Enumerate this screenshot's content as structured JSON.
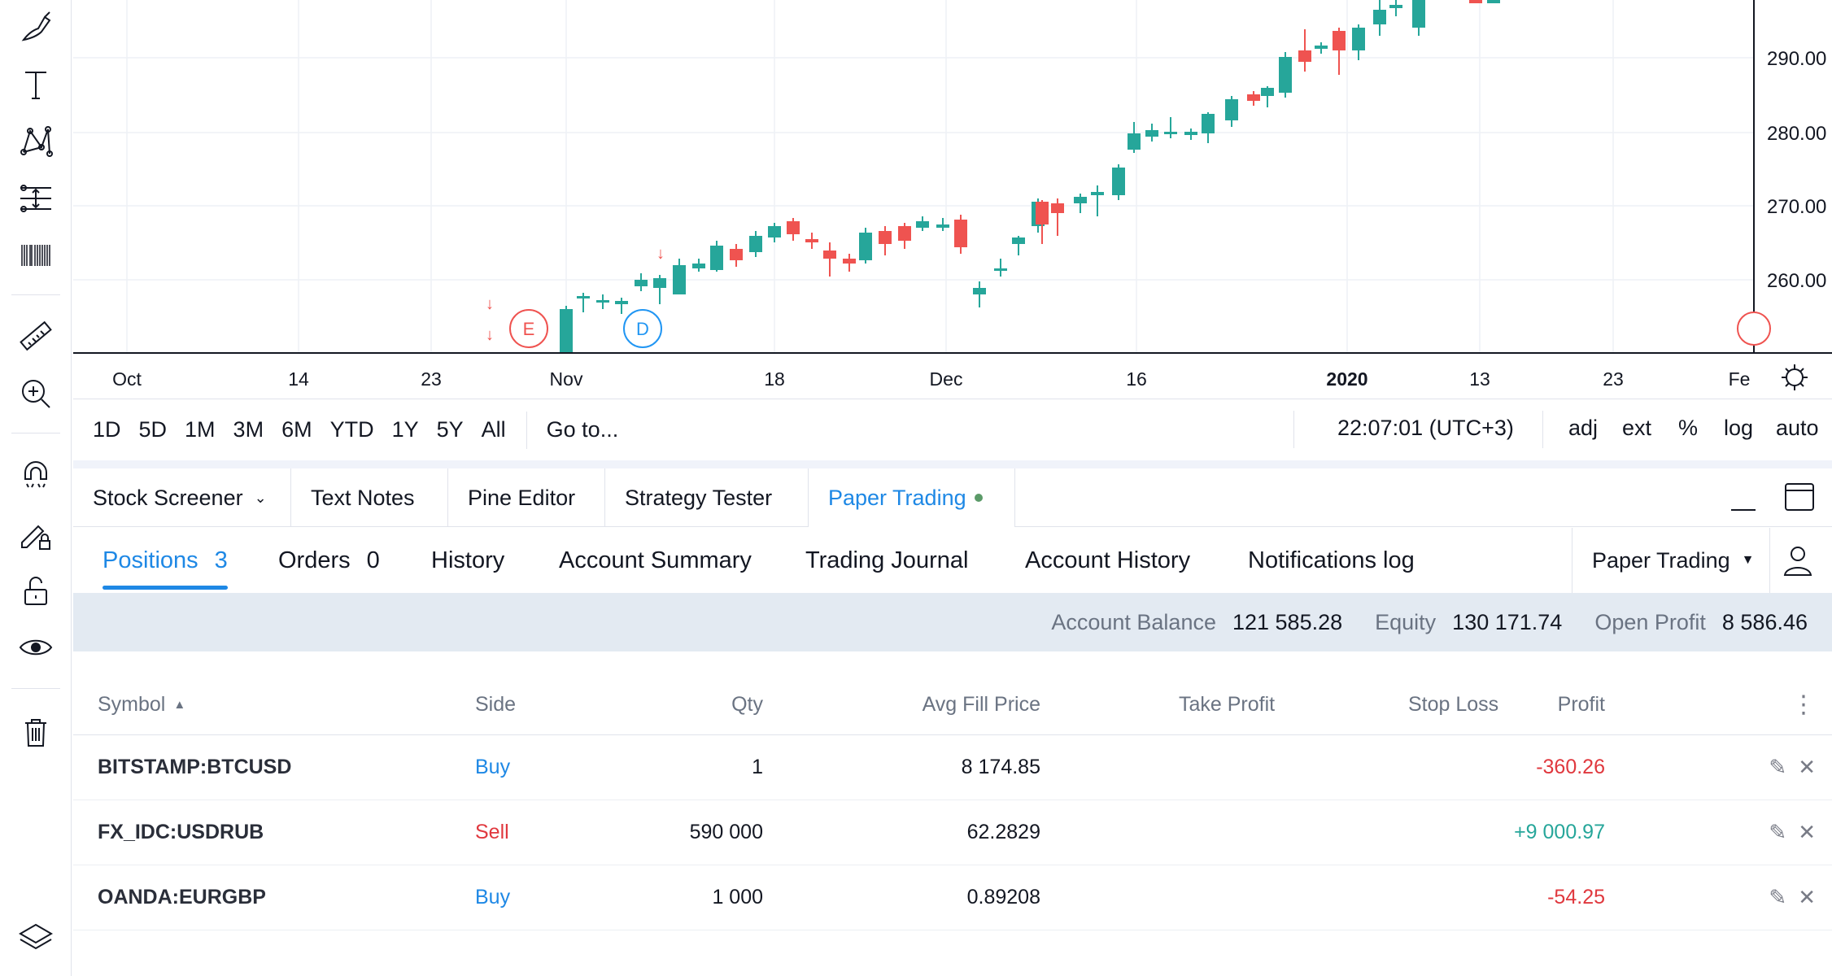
{
  "toolbar": {
    "tools": [
      {
        "name": "brush-icon"
      },
      {
        "name": "text-icon"
      },
      {
        "name": "pattern-icon"
      },
      {
        "name": "prediction-icon"
      },
      {
        "name": "icon-barcode"
      },
      {
        "name": "ruler-icon"
      },
      {
        "name": "zoom-in-icon"
      },
      {
        "name": "magnet-icon"
      },
      {
        "name": "lock-drawing-icon"
      },
      {
        "name": "unlock-icon"
      },
      {
        "name": "eye-icon"
      },
      {
        "name": "trash-icon"
      },
      {
        "name": "layers-icon"
      }
    ]
  },
  "chart": {
    "price_labels": [
      "290.00",
      "280.00",
      "270.00",
      "260.00"
    ],
    "time_labels": [
      "Oct",
      "14",
      "23",
      "Nov",
      "18",
      "Dec",
      "16",
      "2020",
      "13",
      "23",
      "Fe"
    ],
    "event_e": "E",
    "event_d": "D",
    "colors": {
      "up": "#26a69a",
      "down": "#ef5350",
      "dividend": "#2196f3"
    }
  },
  "range_bar": {
    "ranges": [
      "1D",
      "5D",
      "1M",
      "3M",
      "6M",
      "YTD",
      "1Y",
      "5Y",
      "All"
    ],
    "goto": "Go to...",
    "clock": "22:07:01 (UTC+3)",
    "options": [
      "adj",
      "ext",
      "%",
      "log",
      "auto"
    ]
  },
  "panel": {
    "tabs": [
      "Stock Screener",
      "Text Notes",
      "Pine Editor",
      "Strategy Tester",
      "Paper Trading"
    ],
    "sub_tabs": {
      "positions": "Positions",
      "positions_count": "3",
      "orders": "Orders",
      "orders_count": "0",
      "history": "History",
      "account_summary": "Account Summary",
      "trading_journal": "Trading Journal",
      "account_history": "Account History",
      "notifications_log": "Notifications log",
      "broker": "Paper Trading"
    },
    "account": {
      "balance_label": "Account Balance",
      "balance": "121 585.28",
      "equity_label": "Equity",
      "equity": "130 171.74",
      "open_profit_label": "Open Profit",
      "open_profit": "8 586.46"
    },
    "table": {
      "headers": {
        "symbol": "Symbol",
        "side": "Side",
        "qty": "Qty",
        "avg": "Avg Fill Price",
        "tp": "Take Profit",
        "sl": "Stop Loss",
        "profit": "Profit"
      },
      "rows": [
        {
          "symbol": "BITSTAMP:BTCUSD",
          "side": "Buy",
          "qty": "1",
          "avg": "8 174.85",
          "profit": "-360.26"
        },
        {
          "symbol": "FX_IDC:USDRUB",
          "side": "Sell",
          "qty": "590 000",
          "avg": "62.2829",
          "profit": "+9 000.97"
        },
        {
          "symbol": "OANDA:EURGBP",
          "side": "Buy",
          "qty": "1 000",
          "avg": "0.89208",
          "profit": "-54.25"
        }
      ]
    }
  }
}
